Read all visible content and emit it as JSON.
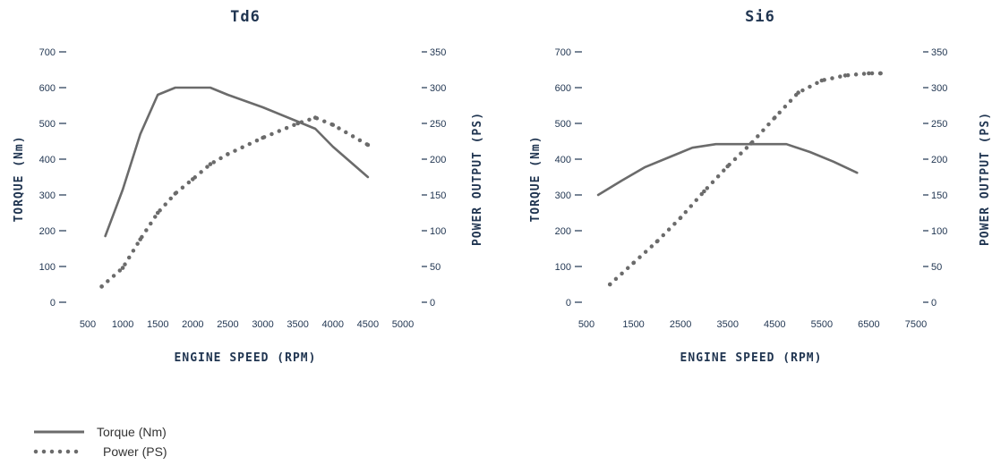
{
  "colors": {
    "line": "#6b6b6b",
    "text": "#1f3450",
    "axis": "#1f3450"
  },
  "legend": {
    "torque": "Torque (Nm)",
    "power": "Power (PS)"
  },
  "chart_data": [
    {
      "type": "line",
      "title": "Td6",
      "xlabel": "ENGINE SPEED (RPM)",
      "ylabel": "TORQUE (Nm)",
      "y2label": "POWER OUTPUT (PS)",
      "xlim": [
        500,
        5000
      ],
      "xticks": [
        500,
        1000,
        1500,
        2000,
        2500,
        3000,
        3500,
        4000,
        4500,
        5000
      ],
      "ylim": [
        0,
        700
      ],
      "yticks": [
        0,
        100,
        200,
        300,
        400,
        500,
        600,
        700
      ],
      "y2lim": [
        0,
        350
      ],
      "y2ticks": [
        0,
        50,
        100,
        150,
        200,
        250,
        300,
        350
      ],
      "grid": false,
      "legend_position": "bottom-left",
      "series": [
        {
          "name": "Torque (Nm)",
          "axis": "left",
          "style": "solid",
          "x": [
            750,
            1000,
            1250,
            1500,
            1750,
            2000,
            2250,
            2500,
            3000,
            3500,
            3750,
            4000,
            4500
          ],
          "y": [
            185,
            315,
            470,
            580,
            600,
            600,
            600,
            580,
            545,
            505,
            485,
            435,
            350
          ]
        },
        {
          "name": "Power (PS)",
          "axis": "right",
          "style": "dotted",
          "x": [
            700,
            1000,
            1250,
            1500,
            1750,
            2000,
            2250,
            2500,
            3000,
            3500,
            3750,
            4000,
            4500
          ],
          "y": [
            22,
            48,
            88,
            125,
            152,
            172,
            193,
            207,
            230,
            250,
            258,
            248,
            220
          ]
        }
      ]
    },
    {
      "type": "line",
      "title": "Si6",
      "xlabel": "ENGINE SPEED (RPM)",
      "ylabel": "TORQUE (Nm)",
      "y2label": "POWER OUTPUT (PS)",
      "xlim": [
        500,
        7500
      ],
      "xticks": [
        500,
        1500,
        2500,
        3500,
        4500,
        5500,
        6500,
        7500
      ],
      "ylim": [
        0,
        700
      ],
      "yticks": [
        0,
        100,
        200,
        300,
        400,
        500,
        600,
        700
      ],
      "y2lim": [
        0,
        350
      ],
      "y2ticks": [
        0,
        50,
        100,
        150,
        200,
        250,
        300,
        350
      ],
      "grid": false,
      "legend_position": "bottom-left",
      "series": [
        {
          "name": "Torque (Nm)",
          "axis": "left",
          "style": "solid",
          "x": [
            750,
            1250,
            1750,
            2250,
            2750,
            3250,
            3750,
            4250,
            4750,
            5250,
            5750,
            6250
          ],
          "y": [
            300,
            340,
            378,
            405,
            432,
            442,
            442,
            442,
            442,
            420,
            393,
            362
          ]
        },
        {
          "name": "Power (PS)",
          "axis": "right",
          "style": "dotted",
          "x": [
            1000,
            1500,
            2000,
            2500,
            3000,
            3500,
            4000,
            4500,
            5000,
            5500,
            6000,
            6500,
            6750
          ],
          "y": [
            25,
            55,
            85,
            118,
            155,
            190,
            222,
            258,
            293,
            310,
            317,
            320,
            320
          ]
        }
      ]
    }
  ]
}
